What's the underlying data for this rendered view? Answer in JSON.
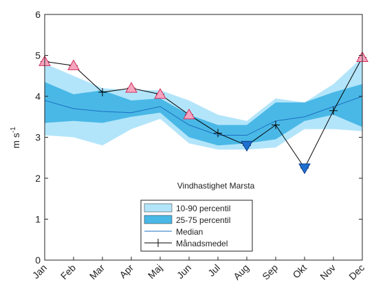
{
  "chart_data": {
    "type": "line",
    "ylabel": {
      "base": "m s",
      "sup": "-1"
    },
    "annotation": "Vindhastighet Marsta",
    "categories": [
      "Jan",
      "Feb",
      "Mar",
      "Apr",
      "Maj",
      "Jun",
      "Jul",
      "Aug",
      "Sep",
      "Okt",
      "Nov",
      "Dec"
    ],
    "ylim": [
      0,
      6
    ],
    "yticks": [
      0,
      1,
      2,
      3,
      4,
      5,
      6
    ],
    "grid": false,
    "bands": [
      {
        "name": "10-90 percentil",
        "color": "#b3e5fa",
        "lower": [
          3.05,
          3.0,
          2.8,
          3.2,
          3.45,
          2.85,
          2.7,
          2.7,
          2.75,
          3.2,
          3.2,
          3.15
        ],
        "upper": [
          4.8,
          4.5,
          4.2,
          4.15,
          4.15,
          3.9,
          3.55,
          3.4,
          3.95,
          3.85,
          4.3,
          4.95
        ]
      },
      {
        "name": "25-75 percentil",
        "color": "#4ab8e6",
        "lower": [
          3.35,
          3.4,
          3.35,
          3.5,
          3.6,
          3.0,
          2.8,
          2.85,
          2.95,
          3.4,
          3.55,
          3.25
        ],
        "upper": [
          4.35,
          4.05,
          4.15,
          3.9,
          3.95,
          3.55,
          3.3,
          3.3,
          3.85,
          3.85,
          4.1,
          4.3
        ]
      }
    ],
    "series": [
      {
        "name": "Median",
        "color": "#1a6fc2",
        "marker": "none",
        "values": [
          3.9,
          3.7,
          3.63,
          3.6,
          3.75,
          3.3,
          3.05,
          3.05,
          3.4,
          3.5,
          3.75,
          4.0
        ]
      },
      {
        "name": "Månadsmedel",
        "color": "#000000",
        "marker": "plus",
        "values": [
          4.85,
          4.75,
          4.1,
          4.2,
          4.05,
          3.55,
          3.1,
          2.8,
          3.3,
          2.25,
          3.65,
          4.95
        ]
      }
    ],
    "extremes": [
      {
        "marker": "triangle-up",
        "color": "#f6a5c0",
        "edge": "#d0305a",
        "values": [
          4.85,
          4.75,
          null,
          4.2,
          4.05,
          3.55,
          null,
          null,
          null,
          null,
          null,
          4.95
        ]
      },
      {
        "marker": "triangle-down",
        "color": "#1f6fd0",
        "edge": "#0b3f8a",
        "values": [
          null,
          null,
          null,
          null,
          null,
          null,
          null,
          2.8,
          null,
          2.25,
          null,
          null
        ]
      }
    ]
  }
}
